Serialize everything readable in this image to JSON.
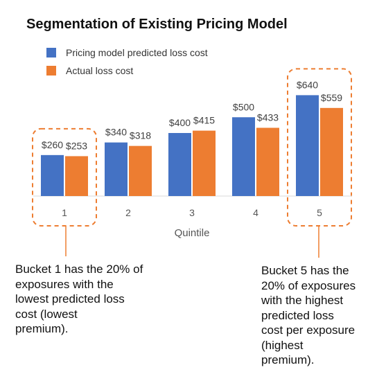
{
  "chart_data": {
    "type": "bar",
    "title": "Segmentation of Existing Pricing Model",
    "xlabel": "Quintile",
    "ylabel": "",
    "categories": [
      "1",
      "2",
      "3",
      "4",
      "5"
    ],
    "series": [
      {
        "name": "Pricing model predicted loss cost",
        "values": [
          260,
          340,
          400,
          500,
          640
        ],
        "labels": [
          "$260",
          "$340",
          "$400",
          "$500",
          "$640"
        ],
        "color": "#4472C4"
      },
      {
        "name": "Actual loss cost",
        "values": [
          253,
          318,
          415,
          433,
          559
        ],
        "labels": [
          "$253",
          "$318",
          "$415",
          "$433",
          "$559"
        ],
        "color": "#ED7D31"
      }
    ],
    "ylim": [
      0,
      700
    ],
    "grid": false,
    "legend_position": "top-left",
    "highlighted_categories": [
      "1",
      "5"
    ],
    "highlight_color": "#ED7D31"
  },
  "annotations": {
    "bucket1_lines": [
      "Bucket 1 has the 20% of",
      "exposures with the",
      "lowest predicted loss",
      "cost (lowest",
      "premium)."
    ],
    "bucket5_lines": [
      "Bucket 5 has the",
      "20% of exposures",
      "with the highest",
      "predicted loss",
      "cost per exposure",
      "(highest",
      "premium)."
    ]
  }
}
